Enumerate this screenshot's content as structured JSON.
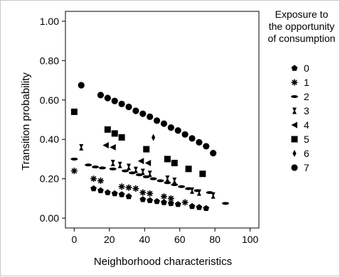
{
  "chart_data": {
    "type": "scatter",
    "title": "",
    "xlabel": "Neighborhood characteristics",
    "ylabel": "Transition probability",
    "xlim": [
      -5,
      105
    ],
    "ylim": [
      -0.05,
      1.05
    ],
    "x_ticks": [
      "0",
      "20",
      "40",
      "60",
      "80",
      "100"
    ],
    "y_ticks": [
      "0.00",
      "0.20",
      "0.40",
      "0.60",
      "0.80",
      "1.00"
    ],
    "grid": false,
    "legend": {
      "title": "Exposure to the opportunity of consumption",
      "title_lines": [
        "Exposure to",
        "the opportunity",
        "of consumption"
      ],
      "placement": "right"
    },
    "series": [
      {
        "name": "0",
        "marker": "pentagon",
        "points": [
          [
            11,
            0.15
          ],
          [
            15,
            0.14
          ],
          [
            19,
            0.13
          ],
          [
            23,
            0.125
          ],
          [
            27,
            0.12
          ],
          [
            31,
            0.11
          ],
          [
            39,
            0.095
          ],
          [
            43,
            0.09
          ],
          [
            47,
            0.085
          ],
          [
            51,
            0.08
          ],
          [
            55,
            0.075
          ],
          [
            59,
            0.07
          ],
          [
            67,
            0.06
          ],
          [
            71,
            0.055
          ],
          [
            75,
            0.05
          ]
        ]
      },
      {
        "name": "1",
        "marker": "asterisk",
        "points": [
          [
            0,
            0.24
          ],
          [
            11,
            0.2
          ],
          [
            15,
            0.19
          ],
          [
            27,
            0.16
          ],
          [
            31,
            0.155
          ],
          [
            35,
            0.15
          ],
          [
            39,
            0.13
          ],
          [
            43,
            0.125
          ],
          [
            51,
            0.11
          ],
          [
            55,
            0.1
          ],
          [
            63,
            0.08
          ]
        ]
      },
      {
        "name": "2",
        "marker": "dash",
        "points": [
          [
            0,
            0.3
          ],
          [
            8,
            0.27
          ],
          [
            12,
            0.26
          ],
          [
            16,
            0.255
          ],
          [
            22,
            0.25
          ],
          [
            29,
            0.24
          ],
          [
            33,
            0.23
          ],
          [
            37,
            0.22
          ],
          [
            41,
            0.21
          ],
          [
            45,
            0.2
          ],
          [
            49,
            0.19
          ],
          [
            53,
            0.18
          ],
          [
            57,
            0.17
          ],
          [
            61,
            0.16
          ],
          [
            65,
            0.15
          ],
          [
            70,
            0.14
          ],
          [
            77,
            0.13
          ],
          [
            86,
            0.075
          ]
        ]
      },
      {
        "name": "3",
        "marker": "hourglass",
        "points": [
          [
            4,
            0.36
          ],
          [
            22,
            0.28
          ],
          [
            26,
            0.27
          ],
          [
            31,
            0.26
          ],
          [
            35,
            0.245
          ],
          [
            39,
            0.235
          ],
          [
            43,
            0.225
          ],
          [
            53,
            0.2
          ],
          [
            57,
            0.19
          ],
          [
            67,
            0.14
          ],
          [
            71,
            0.13
          ],
          [
            79,
            0.115
          ]
        ]
      },
      {
        "name": "4",
        "marker": "triangle-left",
        "points": [
          [
            18,
            0.37
          ],
          [
            22,
            0.36
          ],
          [
            38,
            0.29
          ],
          [
            42,
            0.28
          ]
        ]
      },
      {
        "name": "5",
        "marker": "square",
        "points": [
          [
            0,
            0.54
          ],
          [
            19,
            0.45
          ],
          [
            23,
            0.43
          ],
          [
            27,
            0.41
          ],
          [
            41,
            0.35
          ],
          [
            53,
            0.3
          ],
          [
            57,
            0.28
          ],
          [
            65,
            0.25
          ],
          [
            73,
            0.225
          ]
        ]
      },
      {
        "name": "6",
        "marker": "diamond",
        "points": [
          [
            45,
            0.41
          ]
        ]
      },
      {
        "name": "7",
        "marker": "circle",
        "points": [
          [
            4,
            0.675
          ],
          [
            15,
            0.625
          ],
          [
            19,
            0.61
          ],
          [
            23,
            0.595
          ],
          [
            27,
            0.58
          ],
          [
            31,
            0.565
          ],
          [
            35,
            0.545
          ],
          [
            39,
            0.53
          ],
          [
            43,
            0.515
          ],
          [
            47,
            0.495
          ],
          [
            51,
            0.48
          ],
          [
            55,
            0.46
          ],
          [
            59,
            0.445
          ],
          [
            63,
            0.425
          ],
          [
            67,
            0.405
          ],
          [
            71,
            0.385
          ],
          [
            75,
            0.365
          ],
          [
            79,
            0.33
          ]
        ]
      }
    ]
  }
}
